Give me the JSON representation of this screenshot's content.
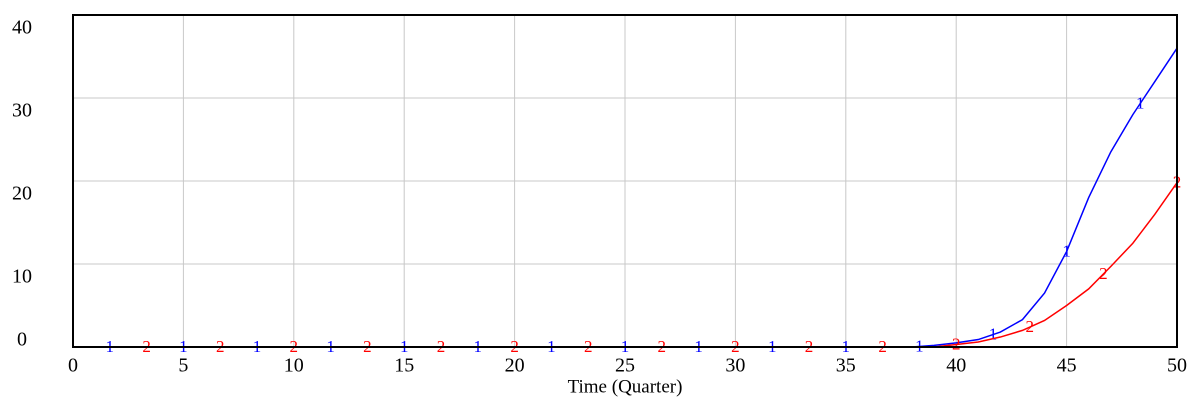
{
  "chart_data": {
    "type": "line",
    "x_label": "Time (Quarter)",
    "x": [
      0,
      1,
      2,
      3,
      4,
      5,
      6,
      7,
      8,
      9,
      10,
      11,
      12,
      13,
      14,
      15,
      16,
      17,
      18,
      19,
      20,
      21,
      22,
      23,
      24,
      25,
      26,
      27,
      28,
      29,
      30,
      31,
      32,
      33,
      34,
      35,
      36,
      37,
      38,
      39,
      40,
      41,
      42,
      43,
      44,
      45,
      46,
      47,
      48,
      49,
      50
    ],
    "series": [
      {
        "name": "1",
        "color": "#0000ff",
        "values": [
          0,
          0,
          0,
          0,
          0,
          0,
          0,
          0,
          0,
          0,
          0,
          0,
          0,
          0,
          0,
          0,
          0,
          0,
          0,
          0,
          0,
          0,
          0,
          0,
          0,
          0,
          0,
          0,
          0,
          0,
          0,
          0,
          0,
          0,
          0,
          0,
          0,
          0,
          0,
          0.2,
          0.5,
          0.9,
          1.8,
          3.3,
          6.5,
          11.5,
          18,
          23.5,
          28,
          32,
          36
        ]
      },
      {
        "name": "2",
        "color": "#ff0000",
        "values": [
          0,
          0,
          0,
          0,
          0,
          0,
          0,
          0,
          0,
          0,
          0,
          0,
          0,
          0,
          0,
          0,
          0,
          0,
          0,
          0,
          0,
          0,
          0,
          0,
          0,
          0,
          0,
          0,
          0,
          0,
          0,
          0,
          0,
          0,
          0,
          0,
          0,
          0,
          0,
          0,
          0.3,
          0.6,
          1.2,
          2,
          3.2,
          5,
          7,
          9.7,
          12.5,
          16,
          19.8
        ]
      }
    ],
    "xlim": [
      0,
      50
    ],
    "xticks": [
      0,
      5,
      10,
      15,
      20,
      25,
      30,
      35,
      40,
      45,
      50
    ],
    "ylim": [
      0,
      40
    ],
    "yticks": [
      0,
      10,
      20,
      30,
      40
    ],
    "grid": true
  }
}
